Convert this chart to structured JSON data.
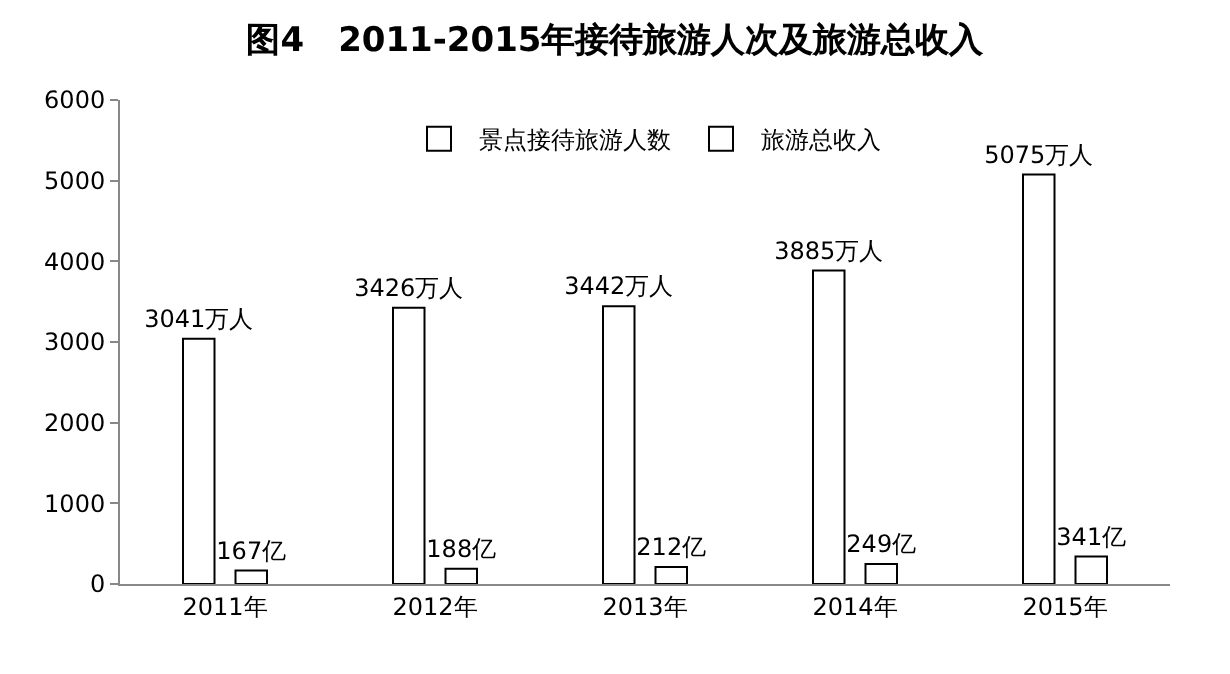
{
  "chart_data": {
    "type": "bar",
    "title": "图4　2011-2015年接待旅游人次及旅游总收入",
    "categories": [
      "2011年",
      "2012年",
      "2013年",
      "2014年",
      "2015年"
    ],
    "series": [
      {
        "name": "景点接待旅游人数",
        "color": "#ffffff",
        "values": [
          3041,
          3426,
          3442,
          3885,
          5075
        ],
        "value_labels": [
          "3041万人",
          "3426万人",
          "3442万人",
          "3885万人",
          "5075万人"
        ]
      },
      {
        "name": "旅游总收入",
        "color": "#ffffff",
        "values": [
          167,
          188,
          212,
          249,
          341
        ],
        "value_labels": [
          "167亿",
          "188亿",
          "212亿",
          "249亿",
          "341亿"
        ]
      }
    ],
    "ylim": [
      0,
      6000
    ],
    "yticks": [
      0,
      1000,
      2000,
      3000,
      4000,
      5000,
      6000
    ],
    "grid": false,
    "legend": "top"
  }
}
